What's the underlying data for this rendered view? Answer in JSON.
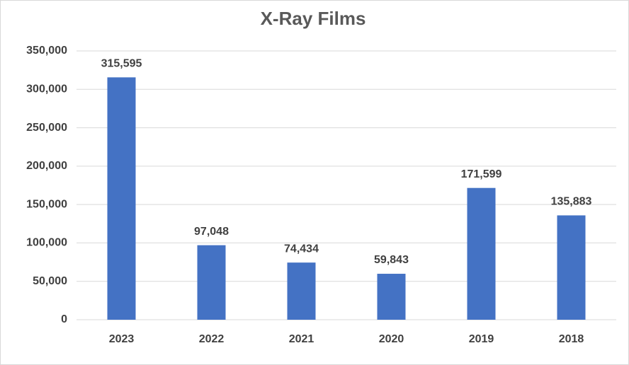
{
  "chart_data": {
    "type": "bar",
    "title": "X-Ray Films",
    "categories": [
      "2023",
      "2022",
      "2021",
      "2020",
      "2019",
      "2018"
    ],
    "values": [
      315595,
      97048,
      74434,
      59843,
      171599,
      135883
    ],
    "value_labels": [
      "315,595",
      "97,048",
      "74,434",
      "59,843",
      "171,599",
      "135,883"
    ],
    "color": "#4472c4",
    "ylim": [
      0,
      350000
    ],
    "yticks": [
      0,
      {
        "value": 50000,
        "label": "50,000"
      },
      {
        "value": 100000,
        "label": "100,000"
      },
      {
        "value": 150000,
        "label": "150,000"
      },
      {
        "value": 200000,
        "label": "200,000"
      },
      {
        "value": 250000,
        "label": "250,000"
      },
      {
        "value": 300000,
        "label": "300,000"
      },
      {
        "value": 350000,
        "label": "350,000"
      }
    ],
    "grid": true
  }
}
